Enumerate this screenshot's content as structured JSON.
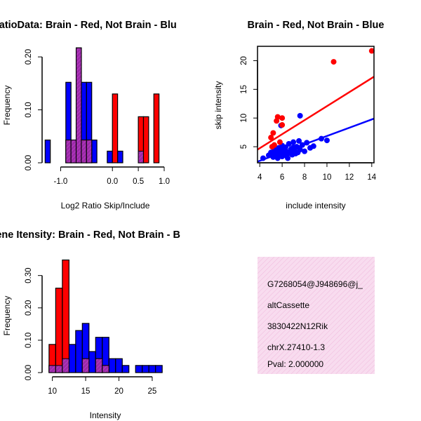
{
  "chart_data": [
    {
      "id": "ratio",
      "type": "bar",
      "title": "RatioData: Brain - Red, Not Brain - Blu",
      "xlabel": "Log2 Ratio Skip/Include",
      "ylabel": "Frequency",
      "xlim": [
        -1.25,
        1.0
      ],
      "ylim": [
        0,
        0.22
      ],
      "xticks": [
        -1.0,
        0.0,
        0.5,
        1.0
      ],
      "xtick_labels": [
        "-1.0",
        "0.0",
        "0.5",
        "1.0"
      ],
      "yticks": [
        0.0,
        0.1,
        0.2
      ],
      "ytick_labels": [
        "0.00",
        "0.10",
        "0.20"
      ],
      "bin_width": 0.1,
      "series": [
        {
          "name": "Not Brain",
          "color": "#0000ff",
          "bins": [
            [
              -1.3,
              0.043
            ],
            [
              -0.9,
              0.152
            ],
            [
              -0.8,
              0.043
            ],
            [
              -0.7,
              0.217
            ],
            [
              -0.6,
              0.152
            ],
            [
              -0.5,
              0.152
            ],
            [
              -0.4,
              0.043
            ],
            [
              -0.1,
              0.022
            ],
            [
              0.1,
              0.022
            ],
            [
              0.5,
              0.022
            ]
          ]
        },
        {
          "name": "Brain",
          "color": "#ff0000",
          "bins": [
            [
              -0.9,
              0.043
            ],
            [
              -0.8,
              0.043
            ],
            [
              -0.7,
              0.217
            ],
            [
              -0.6,
              0.043
            ],
            [
              -0.5,
              0.043
            ],
            [
              0.0,
              0.13
            ],
            [
              0.5,
              0.087
            ],
            [
              0.6,
              0.087
            ],
            [
              0.8,
              0.13
            ]
          ]
        }
      ]
    },
    {
      "id": "scatter",
      "type": "scatter",
      "title": "Brain - Red, Not Brain - Blue",
      "xlabel": "include intensity",
      "ylabel": "skip intensity",
      "xlim": [
        3.8,
        14.2
      ],
      "ylim": [
        2.2,
        22.5
      ],
      "xticks": [
        4,
        6,
        8,
        10,
        12,
        14
      ],
      "xtick_labels": [
        "4",
        "6",
        "8",
        "10",
        "12",
        "14"
      ],
      "yticks": [
        5,
        10,
        15,
        20
      ],
      "ytick_labels": [
        "5",
        "10",
        "15",
        "20"
      ],
      "series": [
        {
          "name": "Brain",
          "color": "#ff0000",
          "points": [
            [
              5.0,
              6.6
            ],
            [
              5.2,
              7.4
            ],
            [
              5.3,
              5.3
            ],
            [
              5.5,
              9.5
            ],
            [
              5.6,
              10.2
            ],
            [
              5.8,
              5.8
            ],
            [
              6.0,
              10.0
            ],
            [
              6.0,
              8.8
            ],
            [
              5.1,
              5.0
            ],
            [
              10.6,
              19.8
            ],
            [
              14.0,
              21.7
            ]
          ],
          "fit": {
            "x": [
              3.8,
              14.2
            ],
            "y": [
              4.5,
              17.2
            ]
          }
        },
        {
          "name": "Not Brain",
          "color": "#0000ff",
          "points": [
            [
              4.3,
              3.0
            ],
            [
              4.8,
              3.5
            ],
            [
              5.0,
              4.0
            ],
            [
              5.2,
              3.2
            ],
            [
              5.3,
              4.5
            ],
            [
              5.4,
              3.8
            ],
            [
              5.5,
              4.2
            ],
            [
              5.6,
              3.0
            ],
            [
              5.7,
              4.8
            ],
            [
              5.8,
              3.5
            ],
            [
              5.9,
              4.0
            ],
            [
              6.0,
              5.2
            ],
            [
              6.0,
              3.3
            ],
            [
              6.1,
              4.4
            ],
            [
              6.2,
              3.7
            ],
            [
              6.3,
              4.9
            ],
            [
              6.4,
              3.4
            ],
            [
              6.5,
              4.1
            ],
            [
              6.6,
              5.5
            ],
            [
              6.7,
              3.9
            ],
            [
              6.8,
              4.6
            ],
            [
              6.9,
              3.6
            ],
            [
              7.0,
              5.8
            ],
            [
              7.1,
              4.3
            ],
            [
              7.2,
              3.8
            ],
            [
              7.3,
              5.0
            ],
            [
              7.4,
              4.0
            ],
            [
              7.5,
              6.0
            ],
            [
              7.6,
              4.5
            ],
            [
              7.8,
              5.3
            ],
            [
              8.0,
              4.2
            ],
            [
              8.2,
              5.7
            ],
            [
              8.5,
              4.8
            ],
            [
              8.8,
              5.1
            ],
            [
              9.5,
              6.4
            ],
            [
              10.0,
              6.1
            ],
            [
              5.9,
              8.7
            ],
            [
              7.6,
              10.4
            ],
            [
              6.5,
              3.0
            ],
            [
              7.0,
              4.9
            ]
          ],
          "fit": {
            "x": [
              3.8,
              14.2
            ],
            "y": [
              2.4,
              9.9
            ]
          }
        }
      ]
    },
    {
      "id": "intensity",
      "type": "bar",
      "title": "Gene Itensity: Brain - Red, Not Brain - B",
      "xlabel": "Intensity",
      "ylabel": "Frequency",
      "xlim": [
        9.3,
        26.8
      ],
      "ylim": [
        0,
        0.36
      ],
      "xticks": [
        10,
        15,
        20,
        25
      ],
      "xtick_labels": [
        "10",
        "15",
        "20",
        "25"
      ],
      "yticks": [
        0.0,
        0.1,
        0.2,
        0.3
      ],
      "ytick_labels": [
        "0.00",
        "0.10",
        "0.20",
        "0.30"
      ],
      "bin_width": 1,
      "series": [
        {
          "name": "Not Brain",
          "color": "#0000ff",
          "bins": [
            [
              9.5,
              0.022
            ],
            [
              10.5,
              0.022
            ],
            [
              11.5,
              0.043
            ],
            [
              12.5,
              0.087
            ],
            [
              13.5,
              0.13
            ],
            [
              14.5,
              0.152
            ],
            [
              15.5,
              0.065
            ],
            [
              16.5,
              0.109
            ],
            [
              17.5,
              0.109
            ],
            [
              18.5,
              0.043
            ],
            [
              19.5,
              0.043
            ],
            [
              20.5,
              0.022
            ],
            [
              22.5,
              0.022
            ],
            [
              23.5,
              0.022
            ],
            [
              24.5,
              0.022
            ],
            [
              25.5,
              0.022
            ]
          ]
        },
        {
          "name": "Brain",
          "color": "#ff0000",
          "bins": [
            [
              9.5,
              0.087
            ],
            [
              10.5,
              0.261
            ],
            [
              11.5,
              0.348
            ],
            [
              14.5,
              0.043
            ],
            [
              16.5,
              0.043
            ],
            [
              17.5,
              0.022
            ]
          ]
        }
      ]
    }
  ],
  "info": {
    "id_text": "G7268054@J948696@j_",
    "event_type": "altCassette",
    "gene": "3830422N12Rik",
    "location": "chrX.27410-1.3",
    "pval": "Pval: 2.000000",
    "pval_color": "#8b0000"
  },
  "colors": {
    "red": "#ff0000",
    "blue": "#0000ff",
    "overlap": "#9b2aa8",
    "info_bg": "#f8dcef"
  }
}
